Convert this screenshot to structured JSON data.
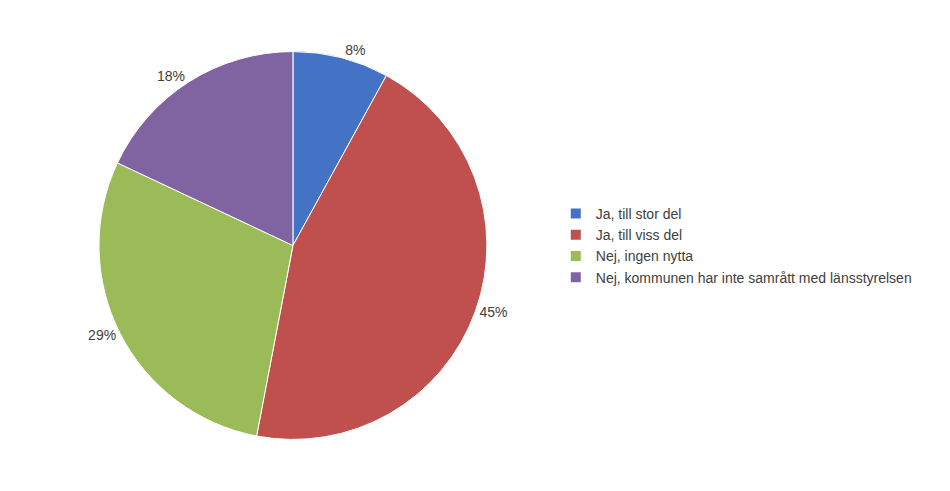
{
  "chart_data": {
    "type": "pie",
    "categories": [
      "Ja, till stor del",
      "Ja, till viss del",
      "Nej, ingen nytta",
      "Nej, kommunen har inte samrått med länsstyrelsen"
    ],
    "values": [
      8,
      45,
      29,
      18
    ],
    "value_labels": [
      "8%",
      "45%",
      "29%",
      "18%"
    ],
    "data_labels": true,
    "colors": [
      "#4472C4",
      "#C0504D",
      "#9BBB59",
      "#8064A2"
    ],
    "legend": "right"
  }
}
